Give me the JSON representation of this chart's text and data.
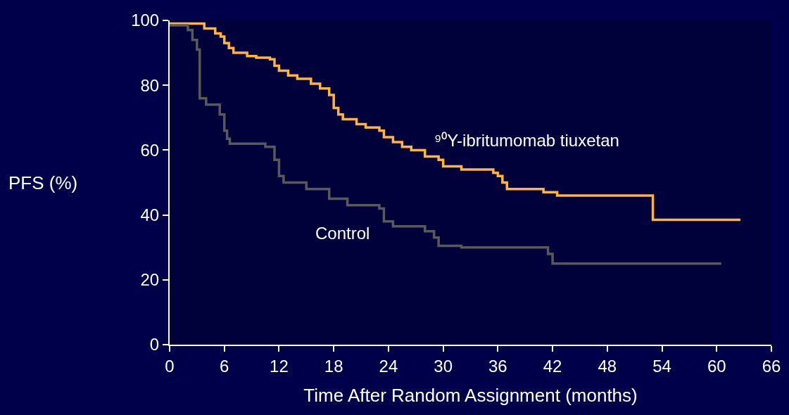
{
  "chart_data": {
    "type": "step",
    "xlabel": "Time After Random Assignment (months)",
    "ylabel": "PFS (%)",
    "xlim": [
      0,
      66
    ],
    "xticks": [
      0,
      6,
      12,
      18,
      24,
      30,
      36,
      42,
      48,
      54,
      60,
      66
    ],
    "ylim": [
      0,
      100
    ],
    "yticks": [
      0,
      20,
      40,
      60,
      80,
      100
    ],
    "grid": false,
    "legend": false,
    "marker": "none",
    "line_style": "solid",
    "series": [
      {
        "name": "⁹⁰Y-ibritumomab tiuxetan",
        "color": "#ffb340",
        "x": [
          0,
          3.8,
          5,
          5.6,
          6,
          6.5,
          7,
          8.5,
          9.5,
          11,
          11.5,
          12,
          13,
          14,
          15.5,
          16.5,
          17.5,
          18,
          18.5,
          19,
          20.5,
          21.5,
          23,
          23.5,
          24.5,
          25.5,
          26.5,
          28,
          29.5,
          30,
          32,
          35.5,
          36,
          36.5,
          37,
          41,
          42.5,
          53,
          62.6
        ],
        "values": [
          99,
          97.5,
          96,
          95,
          93,
          91.5,
          90,
          89,
          88.5,
          88,
          86,
          84.5,
          83,
          82,
          80.5,
          79,
          77,
          73,
          71,
          69.5,
          68,
          67,
          66,
          64,
          62.5,
          61,
          60,
          58,
          57,
          55,
          54,
          53,
          52,
          50,
          48,
          47,
          46,
          38.5,
          38.5
        ]
      },
      {
        "name": "Control",
        "color": "#595959",
        "x": [
          0,
          2,
          2.5,
          3,
          3.3,
          4,
          5.5,
          6,
          6.3,
          6.6,
          10.5,
          11.5,
          12,
          12.5,
          15,
          17.5,
          19.5,
          23,
          23.5,
          24.5,
          28,
          29,
          29.5,
          32,
          41.5,
          42,
          60.5
        ],
        "values": [
          98.5,
          97,
          94,
          91,
          76,
          74,
          71,
          66,
          63.5,
          62,
          61,
          57,
          52,
          50,
          48,
          45,
          43,
          42,
          38,
          36.5,
          35,
          33,
          30.5,
          30,
          28,
          25,
          25
        ]
      }
    ]
  }
}
